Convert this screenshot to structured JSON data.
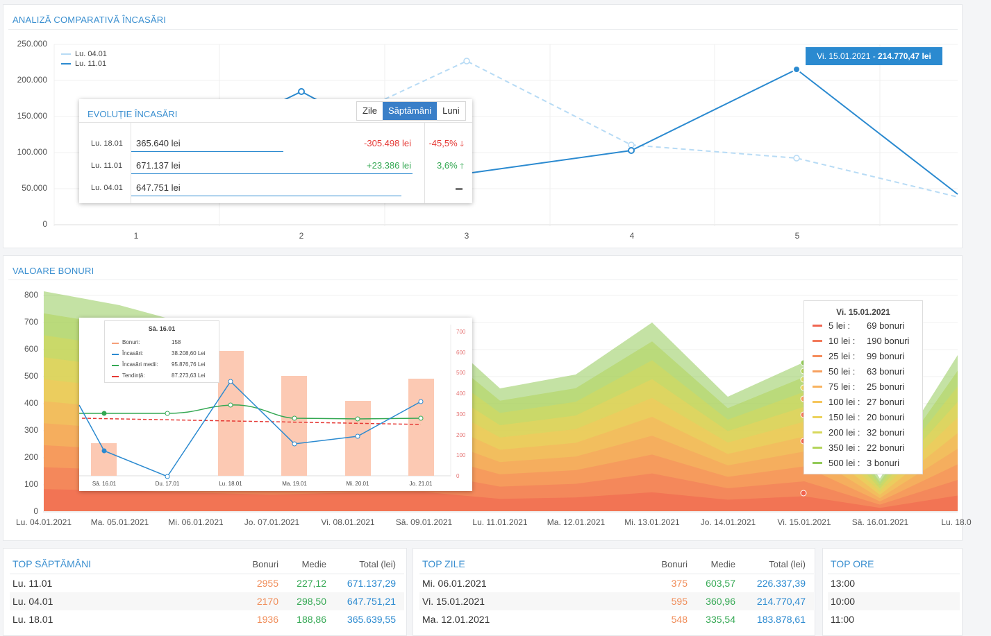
{
  "analiza": {
    "title": "ANALIZĂ COMPARATIVĂ ÎNCASĂRI",
    "y_ticks": [
      "250.000",
      "200.000",
      "150.000",
      "100.000",
      "50.000",
      "0"
    ],
    "x_ticks": [
      "1",
      "2",
      "3",
      "4",
      "5"
    ],
    "legend": [
      {
        "label": "Lu. 04.01",
        "color": "#b7dbf5"
      },
      {
        "label": "Lu. 11.01",
        "color": "#2b8ad0"
      }
    ],
    "tooltip": {
      "date": "Vi. 15.01.2021 - ",
      "value": "214.770,47 lei"
    }
  },
  "evolutie": {
    "title": "EVOLUȚIE ÎNCASĂRI",
    "tabs": [
      "Zile",
      "Săptămâni",
      "Luni"
    ],
    "active_tab": "Săptămâni",
    "rows": [
      {
        "date": "Lu. 18.01",
        "value": "365.640 lei",
        "diff": "-305.498 lei",
        "pct": "-45,5%",
        "trend": "down",
        "share": 0.54
      },
      {
        "date": "Lu. 11.01",
        "value": "671.137 lei",
        "diff": "+23.386 lei",
        "pct": "3,6%",
        "trend": "up",
        "share": 1.0
      },
      {
        "date": "Lu. 04.01",
        "value": "647.751 lei",
        "diff": "",
        "pct": "",
        "trend": "flat",
        "share": 0.96
      }
    ]
  },
  "valoare": {
    "title": "VALOARE BONURI",
    "y_ticks": [
      "800",
      "700",
      "600",
      "500",
      "400",
      "300",
      "200",
      "100",
      "0"
    ],
    "x_ticks": [
      "Lu. 04.01.2021",
      "Ma. 05.01.2021",
      "Mi. 06.01.2021",
      "Jo. 07.01.2021",
      "Vi. 08.01.2021",
      "Sâ. 09.01.2021",
      "Lu. 11.01.2021",
      "Ma. 12.01.2021",
      "Mi. 13.01.2021",
      "Jo. 14.01.2021",
      "Vi. 15.01.2021",
      "Sâ. 16.01.2021",
      "Lu. 18.0"
    ],
    "legend_title": "Vi. 15.01.2021",
    "legend": [
      {
        "k": "5 lei :",
        "v": "69 bonuri",
        "color": "#f0644f"
      },
      {
        "k": "10 lei :",
        "v": "190 bonuri",
        "color": "#f2795a"
      },
      {
        "k": "25 lei :",
        "v": "99 bonuri",
        "color": "#f58c5c"
      },
      {
        "k": "50 lei :",
        "v": "63 bonuri",
        "color": "#f7a05e"
      },
      {
        "k": "75 lei :",
        "v": "25 bonuri",
        "color": "#f8b35f"
      },
      {
        "k": "100 lei :",
        "v": "27 bonuri",
        "color": "#f6c65d"
      },
      {
        "k": "150 lei :",
        "v": "20 bonuri",
        "color": "#ecd25b"
      },
      {
        "k": "200 lei :",
        "v": "32 bonuri",
        "color": "#d7d85b"
      },
      {
        "k": "350 lei :",
        "v": "22 bonuri",
        "color": "#b3d45a"
      },
      {
        "k": "500 lei :",
        "v": "3 bonuri",
        "color": "#93ca59"
      }
    ]
  },
  "mini": {
    "tooltip_title": "Sâ. 16.01",
    "tooltip_rows": [
      {
        "k": "Bonuri:",
        "v": "158",
        "color": "#f6a07a"
      },
      {
        "k": "Încasări:",
        "v": "38.208,60 Lei",
        "color": "#2b8ad0"
      },
      {
        "k": "Încasări medii:",
        "v": "95.876,76 Lei",
        "color": "#34a853"
      },
      {
        "k": "Tendință:",
        "v": "87.273,63 Lei",
        "color": "#e53935"
      }
    ],
    "x_ticks": [
      "Sâ. 16.01",
      "Du. 17.01",
      "Lu. 18.01",
      "Ma. 19.01",
      "Mi. 20.01",
      "Jo. 21.01"
    ],
    "r_ticks": [
      "700",
      "600",
      "500",
      "400",
      "300",
      "200",
      "100",
      "0"
    ]
  },
  "top_saptamani": {
    "title": "TOP SĂPTĂMÂNI",
    "cols": [
      "Bonuri",
      "Medie",
      "Total (lei)"
    ],
    "rows": [
      {
        "name": "Lu. 11.01",
        "bonuri": "2955",
        "medie": "227,12",
        "total": "671.137,29"
      },
      {
        "name": "Lu. 04.01",
        "bonuri": "2170",
        "medie": "298,50",
        "total": "647.751,21"
      },
      {
        "name": "Lu. 18.01",
        "bonuri": "1936",
        "medie": "188,86",
        "total": "365.639,55"
      }
    ]
  },
  "top_zile": {
    "title": "TOP ZILE",
    "cols": [
      "Bonuri",
      "Medie",
      "Total (lei)"
    ],
    "rows": [
      {
        "name": "Mi. 06.01.2021",
        "bonuri": "375",
        "medie": "603,57",
        "total": "226.337,39"
      },
      {
        "name": "Vi. 15.01.2021",
        "bonuri": "595",
        "medie": "360,96",
        "total": "214.770,47"
      },
      {
        "name": "Ma. 12.01.2021",
        "bonuri": "548",
        "medie": "335,54",
        "total": "183.878,61"
      }
    ]
  },
  "top_ore": {
    "title": "TOP ORE",
    "rows": [
      "13:00",
      "10:00",
      "11:00"
    ]
  }
}
